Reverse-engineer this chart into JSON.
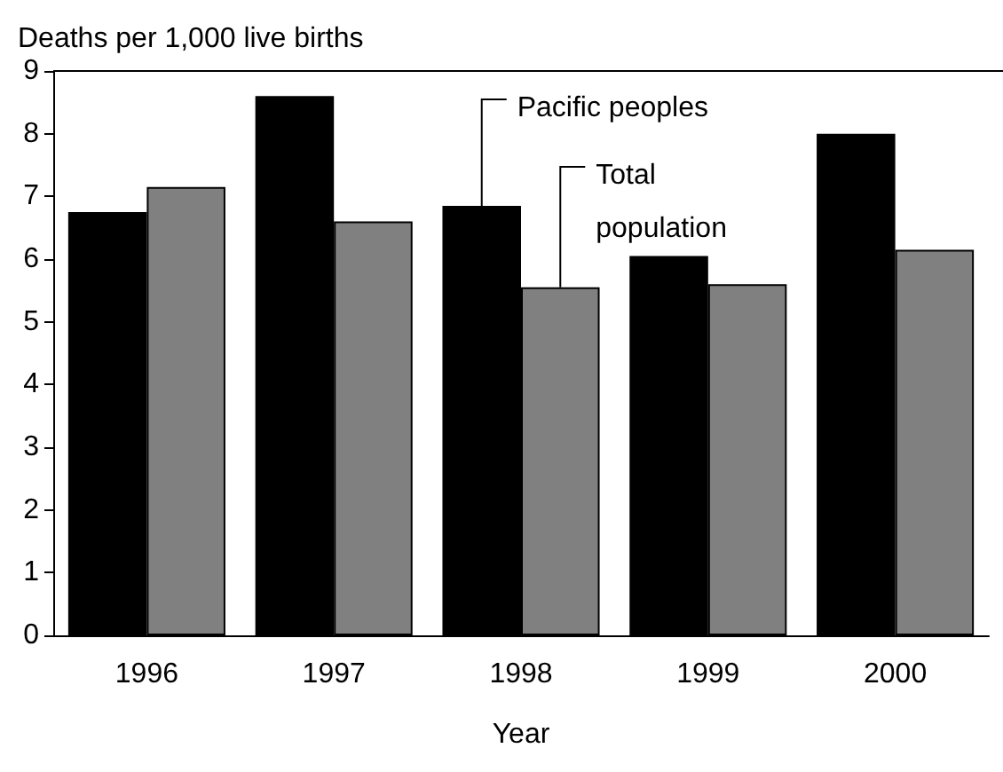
{
  "chart_data": {
    "type": "bar",
    "ylabel": "Deaths per 1,000 live births",
    "xlabel": "Year",
    "categories": [
      "1996",
      "1997",
      "1998",
      "1999",
      "2000"
    ],
    "series": [
      {
        "name": "Pacific peoples",
        "color": "#000000",
        "values": [
          6.75,
          8.6,
          6.85,
          6.05,
          8.0
        ]
      },
      {
        "name": "Total population",
        "color": "#808080",
        "values": [
          7.15,
          6.6,
          5.55,
          5.6,
          6.15
        ]
      }
    ],
    "ylim": [
      0,
      9
    ],
    "yticks": [
      0,
      1,
      2,
      3,
      4,
      5,
      6,
      7,
      8,
      9
    ],
    "grid": false,
    "legend": false
  }
}
